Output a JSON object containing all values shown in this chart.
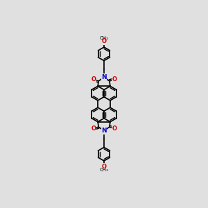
{
  "bg_color": "#e0e0e0",
  "bond_color": "#000000",
  "N_color": "#0000cc",
  "O_color": "#cc0000",
  "bond_lw": 1.25,
  "dbl_off": 0.023,
  "r_core": 0.118,
  "r_benz": 0.112,
  "figsize": [
    3.0,
    3.0
  ],
  "dpi": 100,
  "xlim": [
    -0.52,
    0.52
  ],
  "ylim": [
    -1.72,
    1.72
  ]
}
